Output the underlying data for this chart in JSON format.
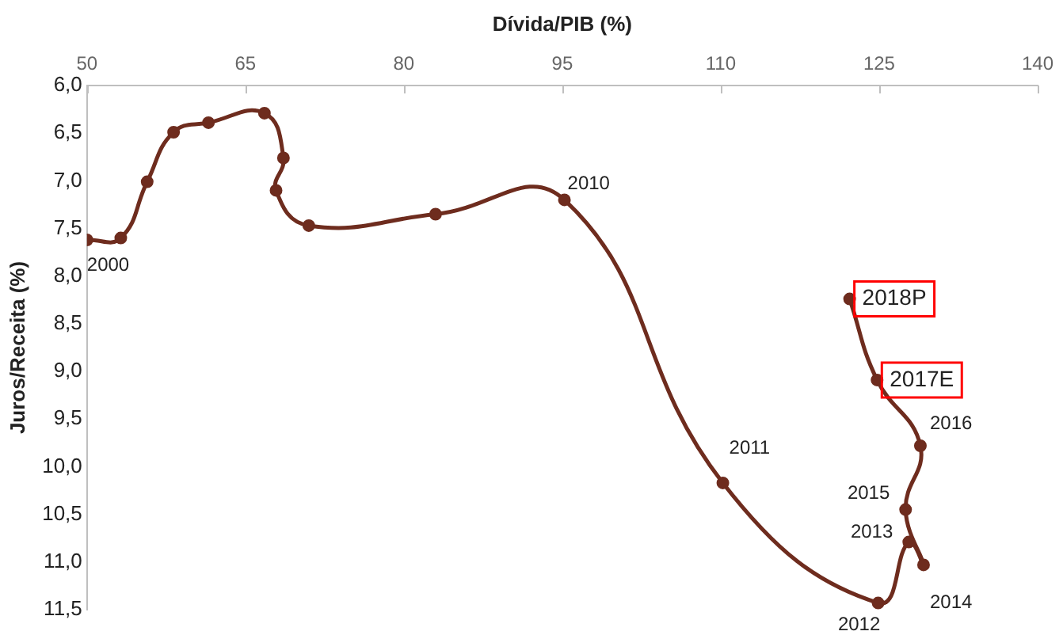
{
  "chart_data": {
    "type": "line",
    "xlabel": "Dívida/PIB (%)",
    "ylabel": "Juros/Receita (%)",
    "x": [
      50,
      53.2,
      55.7,
      58.2,
      61.5,
      66.8,
      68.6,
      67.9,
      71.0,
      83.0,
      95.2,
      110.2,
      124.9,
      127.8,
      129.2,
      127.5,
      128.9,
      124.8,
      122.2
    ],
    "series": [
      {
        "color": "#6e2c1e",
        "values": [
          7.62,
          7.6,
          7.01,
          6.49,
          6.39,
          6.29,
          6.76,
          7.1,
          7.47,
          7.35,
          7.2,
          10.17,
          11.43,
          10.79,
          11.03,
          10.45,
          9.78,
          9.09,
          8.24
        ]
      }
    ],
    "xlim": [
      50,
      140
    ],
    "xticks": [
      50,
      65,
      80,
      95,
      110,
      125,
      140
    ],
    "ylim": [
      11.5,
      6
    ],
    "yticks": [
      {
        "value": 6,
        "label": "6,0"
      },
      {
        "value": 6.5,
        "label": "6,5"
      },
      {
        "value": 7,
        "label": "7,0"
      },
      {
        "value": 7.5,
        "label": "7,5"
      },
      {
        "value": 8,
        "label": "8,0"
      },
      {
        "value": 8.5,
        "label": "8,5"
      },
      {
        "value": 9,
        "label": "9,0"
      },
      {
        "value": 9.5,
        "label": "9,5"
      },
      {
        "value": 10,
        "label": "10,0"
      },
      {
        "value": 10.5,
        "label": "10,5"
      },
      {
        "value": 11,
        "label": "11,0"
      },
      {
        "value": 11.5,
        "label": "11,5"
      }
    ],
    "grid": false,
    "legend": false,
    "marker": "circle",
    "line_style": "solid",
    "annotations": [
      {
        "text": "2000",
        "x": 50,
        "y": 7.62
      },
      {
        "text": "2010",
        "x": 95.2,
        "y": 7.2
      },
      {
        "text": "2011",
        "x": 110.2,
        "y": 10.17
      },
      {
        "text": "2012",
        "x": 124.9,
        "y": 11.43
      },
      {
        "text": "2013",
        "x": 127.8,
        "y": 10.79
      },
      {
        "text": "2014",
        "x": 129.2,
        "y": 11.03
      },
      {
        "text": "2015",
        "x": 127.5,
        "y": 10.45
      },
      {
        "text": "2016",
        "x": 128.9,
        "y": 9.78
      },
      {
        "text": "2017E",
        "x": 124.8,
        "y": 9.09
      },
      {
        "text": "2018P",
        "x": 122.2,
        "y": 8.24
      }
    ]
  }
}
